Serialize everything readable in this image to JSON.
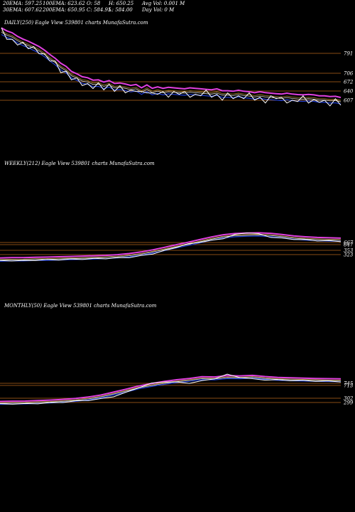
{
  "header": {
    "ema20": "20EMA: 597.25",
    "ema100": "100EMA: 623.62",
    "open": "O: 58",
    "high": "H: 650.25",
    "avg_vol": "Avg Vol: 0.001 M",
    "ema30": "30EMA: 607.62",
    "ema200": "200EMA: 650.95",
    "close": "C: 584.95",
    "low": "L: 584.00",
    "day_vol": "Day Vol: 0  M"
  },
  "panels": {
    "daily_title": "DAILY(250) Eagle  View  539801 charts MunafaSutra.com",
    "weekly_title": "WEEKLY(212) Eagle  View  539801 charts MunafaSutra.com",
    "monthly_title": "MONTHLY(50) Eagle  View  539801 charts MunafaSutra.com"
  },
  "colors": {
    "price": "#ffffff",
    "ema_short": "#1f3fd8",
    "ema_mid": "#d9d9d9",
    "ema_long": "#a07a2a",
    "ema_200": "#e040e0",
    "level_line": "#b5651d"
  },
  "chart_data": [
    {
      "type": "line",
      "panel": "daily",
      "levels": [
        "791",
        "706",
        "672",
        "640",
        "607"
      ],
      "series": [
        {
          "values": [
            1090,
            1040,
            1010,
            1000,
            990,
            975,
            960,
            940,
            910,
            890,
            860,
            810,
            790,
            760,
            745,
            720,
            705,
            700,
            710,
            690,
            700,
            680,
            690,
            670,
            660,
            680,
            650,
            670,
            640,
            660,
            650,
            640,
            650,
            660,
            650,
            640,
            630,
            650,
            660,
            640,
            630,
            620,
            640,
            630,
            620,
            630,
            640,
            620,
            610,
            600,
            620,
            630,
            610,
            600,
            590,
            610,
            620,
            600,
            595,
            605,
            590,
            580,
            600,
            585
          ]
        }
      ]
    },
    {
      "type": "line",
      "panel": "weekly",
      "levels": [
        "667",
        "647",
        "353",
        "323"
      ],
      "series": [
        {
          "values": [
            330,
            335,
            332,
            340,
            345,
            348,
            352,
            356,
            360,
            365,
            370,
            380,
            400,
            430,
            470,
            520,
            560,
            590,
            610,
            640,
            690,
            720,
            700,
            660,
            640,
            630,
            620,
            610,
            605,
            600
          ]
        }
      ]
    },
    {
      "type": "line",
      "panel": "monthly",
      "levels": [
        "745",
        "713",
        "302",
        "299"
      ],
      "series": [
        {
          "values": [
            300,
            305,
            302,
            310,
            318,
            330,
            345,
            360,
            380,
            420,
            480,
            560,
            620,
            650,
            640,
            630,
            660,
            700,
            760,
            720,
            690,
            680,
            675,
            670,
            665,
            660,
            655,
            650
          ]
        }
      ]
    }
  ]
}
